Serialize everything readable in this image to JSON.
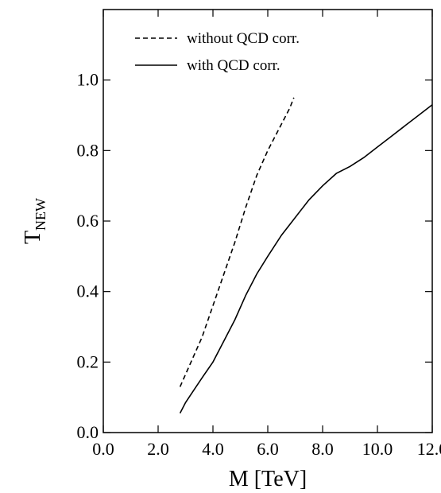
{
  "chart_data": {
    "type": "line",
    "title": "",
    "xlabel": "M  [TeV]",
    "ylabel_main": "T",
    "ylabel_sub": "NEW",
    "xlim": [
      0,
      12
    ],
    "ylim": [
      0,
      1.2
    ],
    "xticks": [
      0,
      2,
      4,
      6,
      8,
      10,
      12
    ],
    "xtick_labels": [
      "0.0",
      "2.0",
      "4.0",
      "6.0",
      "8.0",
      "10.0",
      "12.0"
    ],
    "yticks": [
      0,
      0.2,
      0.4,
      0.6,
      0.8,
      1.0
    ],
    "ytick_labels": [
      "0.0",
      "0.2",
      "0.4",
      "0.6",
      "0.8",
      "1.0"
    ],
    "grid": false,
    "legend_position": "top-left",
    "series": [
      {
        "name": "without QCD corr.",
        "style": "dashed",
        "x": [
          2.8,
          3.2,
          3.6,
          4.0,
          4.4,
          4.8,
          5.2,
          5.6,
          6.0,
          6.4,
          6.8,
          6.95
        ],
        "y": [
          0.13,
          0.2,
          0.27,
          0.36,
          0.45,
          0.54,
          0.64,
          0.73,
          0.8,
          0.86,
          0.92,
          0.95
        ]
      },
      {
        "name": "with QCD corr.",
        "style": "solid",
        "x": [
          2.8,
          3.0,
          3.3,
          3.6,
          4.0,
          4.4,
          4.8,
          5.2,
          5.6,
          6.0,
          6.5,
          7.0,
          7.5,
          8.0,
          8.5,
          9.0,
          9.5,
          10.0,
          10.5,
          11.0,
          11.5,
          12.0
        ],
        "y": [
          0.055,
          0.085,
          0.12,
          0.155,
          0.2,
          0.26,
          0.32,
          0.39,
          0.45,
          0.5,
          0.56,
          0.61,
          0.66,
          0.7,
          0.735,
          0.755,
          0.78,
          0.81,
          0.84,
          0.87,
          0.9,
          0.93
        ]
      }
    ]
  }
}
